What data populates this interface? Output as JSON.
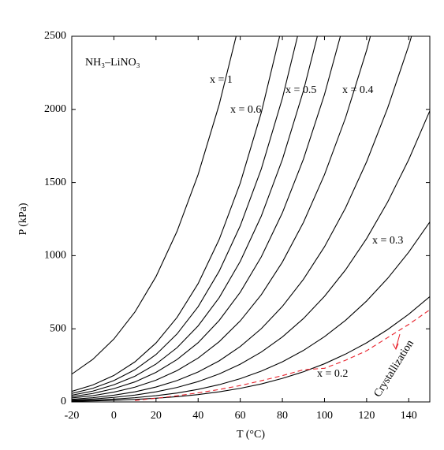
{
  "chart_data": {
    "type": "line",
    "xlabel": "T (°C)",
    "ylabel": "P (kPa)",
    "x": [
      -20,
      -10,
      0,
      10,
      20,
      30,
      40,
      50,
      60,
      70,
      80,
      90,
      100,
      110,
      120,
      130,
      140,
      150
    ],
    "series": [
      {
        "color": "#000000",
        "values": [
          190,
          291,
          430,
          615,
          857,
          1167,
          1555,
          2033,
          2614,
          null,
          null,
          null,
          null,
          null,
          null,
          null,
          null,
          null
        ]
      },
      {
        "color": "#000000",
        "values": [
          72,
          116,
          181,
          274,
          403,
          578,
          809,
          1111,
          1496,
          1979,
          2578,
          null,
          null,
          null,
          null,
          null,
          null,
          null
        ]
      },
      {
        "color": "#000000",
        "values": [
          58,
          93,
          146,
          220,
          324,
          465,
          651,
          894,
          1204,
          1593,
          2076,
          2665,
          null,
          null,
          null,
          null,
          null,
          null
        ]
      },
      {
        "color": "#000000",
        "values": [
          46,
          74,
          117,
          176,
          259,
          371,
          520,
          713,
          961,
          1271,
          1657,
          2127,
          2693,
          null,
          null,
          null,
          null,
          null
        ]
      },
      {
        "color": "#000000",
        "values": [
          36,
          58,
          91,
          137,
          202,
          290,
          405,
          557,
          750,
          992,
          1293,
          1660,
          2102,
          2630,
          null,
          null,
          null,
          null
        ]
      },
      {
        "color": "#000000",
        "values": [
          27,
          43,
          67,
          101,
          149,
          214,
          300,
          412,
          554,
          733,
          956,
          1227,
          1554,
          1943,
          2404,
          2943,
          null,
          null
        ]
      },
      {
        "color": "#000000",
        "values": [
          18,
          29,
          46,
          69,
          102,
          146,
          205,
          281,
          379,
          501,
          653,
          838,
          1061,
          1327,
          1642,
          2010,
          2436,
          2925
        ]
      },
      {
        "color": "#000000",
        "values": [
          12,
          20,
          31,
          47,
          69,
          99,
          139,
          191,
          258,
          341,
          444,
          570,
          722,
          903,
          1117,
          1367,
          1657,
          1990
        ]
      },
      {
        "color": "#000000",
        "values": [
          8,
          12,
          19,
          29,
          43,
          61,
          86,
          118,
          159,
          211,
          274,
          352,
          446,
          558,
          690,
          845,
          1024,
          1230
        ]
      },
      {
        "color": "#000000",
        "values": [
          4,
          7,
          11,
          17,
          25,
          36,
          50,
          69,
          93,
          123,
          161,
          206,
          261,
          327,
          404,
          495,
          600,
          720
        ]
      },
      {
        "color": "#e8202a",
        "dashed": true,
        "values": [
          null,
          null,
          null,
          10,
          25,
          42,
          62,
          85,
          112,
          145,
          180,
          220,
          230,
          285,
          350,
          440,
          530,
          630
        ]
      }
    ],
    "annotations": [
      "NH₃–LiNO₃",
      "x = 1",
      "x = 0.6",
      "x = 0.5",
      "x = 0.4",
      "x = 0.3",
      "x = 0.2",
      "Crystallization"
    ],
    "xlim": [
      -20,
      150
    ],
    "ylim": [
      0,
      2500
    ],
    "xticks": [
      -20,
      0,
      20,
      40,
      60,
      80,
      100,
      120,
      140
    ],
    "yticks": [
      0,
      500,
      1000,
      1500,
      2000,
      2500
    ]
  }
}
